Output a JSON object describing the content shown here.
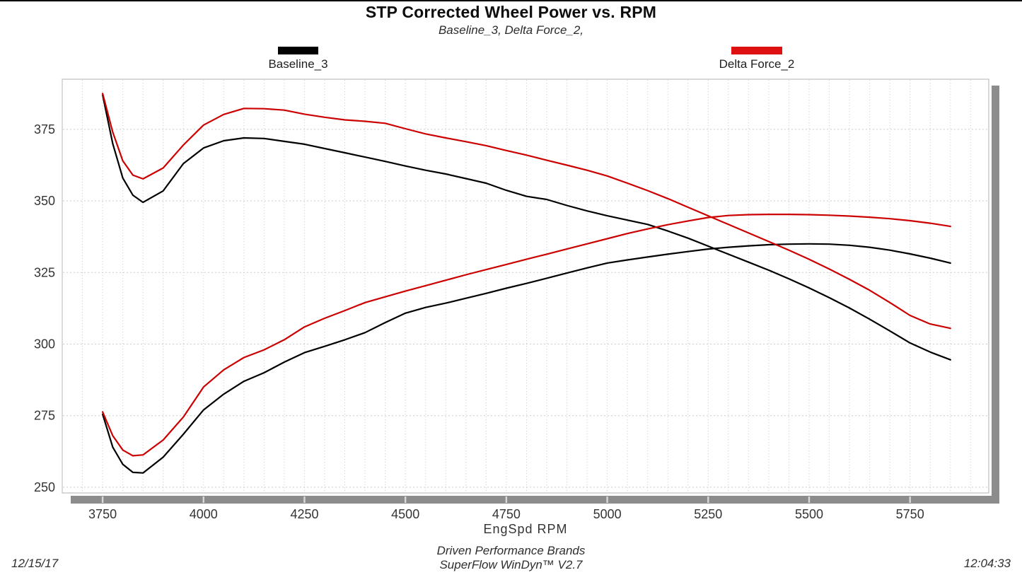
{
  "page": {
    "title": "STP Corrected Wheel Power vs. RPM",
    "subtitle": "Baseline_3, Delta Force_2,",
    "x_axis_title": "EngSpd  RPM",
    "footer": {
      "brand": "Driven Performance Brands",
      "software": "SuperFlow WinDyn™ V2.7",
      "date": "12/15/17",
      "time": "12:04:33"
    }
  },
  "chart_data": {
    "type": "line",
    "title": "STP Corrected Wheel Power vs. RPM",
    "subtitle": "Baseline_3, Delta Force_2,",
    "xlabel": "EngSpd  RPM",
    "ylabel": "",
    "xlim": [
      3650,
      5945
    ],
    "ylim": [
      248,
      392.5
    ],
    "x_major_ticks": [
      3750,
      4000,
      4250,
      4500,
      4750,
      5000,
      5250,
      5500,
      5750
    ],
    "x_minor_step": 50,
    "y_major_ticks": [
      250,
      275,
      300,
      325,
      350,
      375
    ],
    "grid": "dotted light-gray; vertical lines every 50 RPM, horizontal lines every 25 units",
    "legend_position": "above plot, left and right",
    "colors": {
      "baseline": "#000000",
      "delta": "#cc0000",
      "delta_swatch": "#dd1111",
      "shadow": "#8c8c8c",
      "grid": "#cbcbcb",
      "frame": "#b0b0b0"
    },
    "legend": [
      {
        "label": "Baseline_3",
        "color": "#000000"
      },
      {
        "label": "Delta Force_2",
        "color": "#dd1111"
      }
    ],
    "x": [
      3750,
      3775,
      3800,
      3825,
      3850,
      3900,
      3950,
      4000,
      4050,
      4100,
      4150,
      4200,
      4250,
      4300,
      4350,
      4400,
      4450,
      4500,
      4550,
      4600,
      4650,
      4700,
      4750,
      4800,
      4850,
      4900,
      4950,
      5000,
      5050,
      5100,
      5150,
      5200,
      5250,
      5300,
      5350,
      5400,
      5450,
      5500,
      5550,
      5600,
      5650,
      5700,
      5750,
      5800,
      5850
    ],
    "series": [
      {
        "name": "Baseline_3 upper curve",
        "run": "Baseline_3",
        "color": "#000000",
        "values": [
          387,
          370,
          358,
          352,
          349.5,
          353.5,
          363,
          368.5,
          371,
          372,
          371.8,
          370.8,
          369.8,
          368.3,
          366.8,
          365.3,
          363.8,
          362.2,
          360.7,
          359.4,
          357.8,
          356.2,
          353.7,
          351.6,
          350.5,
          348.4,
          346.5,
          344.8,
          343.3,
          341.8,
          339.5,
          337,
          334.2,
          331.4,
          328.6,
          325.8,
          322.8,
          319.6,
          316.2,
          312.6,
          308.7,
          304.6,
          300.4,
          297.2,
          294.5
        ]
      },
      {
        "name": "Baseline_3 lower curve",
        "run": "Baseline_3",
        "color": "#000000",
        "values": [
          275.5,
          264,
          258,
          255.2,
          255,
          260.5,
          268.5,
          277,
          282.5,
          287,
          290,
          293.7,
          297,
          299.2,
          301.5,
          304,
          307.5,
          310.8,
          312.8,
          314.3,
          316,
          317.7,
          319.5,
          321.2,
          323,
          324.8,
          326.6,
          328.3,
          329.4,
          330.4,
          331.4,
          332.3,
          333.2,
          333.8,
          334.3,
          334.7,
          334.9,
          335,
          334.9,
          334.5,
          333.8,
          332.8,
          331.5,
          330,
          328.3
        ]
      },
      {
        "name": "Delta Force_2 upper curve",
        "run": "Delta Force_2",
        "color": "#cc0000",
        "values": [
          387.5,
          374,
          364,
          359,
          357.7,
          361.5,
          369.5,
          376.5,
          380.2,
          382.3,
          382.2,
          381.7,
          380.3,
          379.2,
          378.3,
          377.8,
          377.1,
          375.2,
          373.4,
          372,
          370.7,
          369.3,
          367.6,
          366,
          364.2,
          362.5,
          360.7,
          358.7,
          356.2,
          353.6,
          350.8,
          347.8,
          344.8,
          341.8,
          338.8,
          335.8,
          332.8,
          329.6,
          326.2,
          322.6,
          318.8,
          314.5,
          310,
          307,
          305.5
        ]
      },
      {
        "name": "Delta Force_2 lower curve",
        "run": "Delta Force_2",
        "color": "#cc0000",
        "values": [
          276.3,
          268,
          263,
          261,
          261.3,
          266.5,
          274.5,
          285,
          291,
          295.3,
          298,
          301.5,
          306,
          309,
          311.7,
          314.5,
          316.5,
          318.5,
          320.4,
          322.3,
          324.2,
          326,
          327.8,
          329.6,
          331.4,
          333.2,
          335,
          336.8,
          338.6,
          340.2,
          341.7,
          343,
          344.2,
          344.9,
          345.2,
          345.3,
          345.3,
          345.2,
          345,
          344.7,
          344.3,
          343.8,
          343.1,
          342.2,
          341.1
        ]
      }
    ]
  }
}
